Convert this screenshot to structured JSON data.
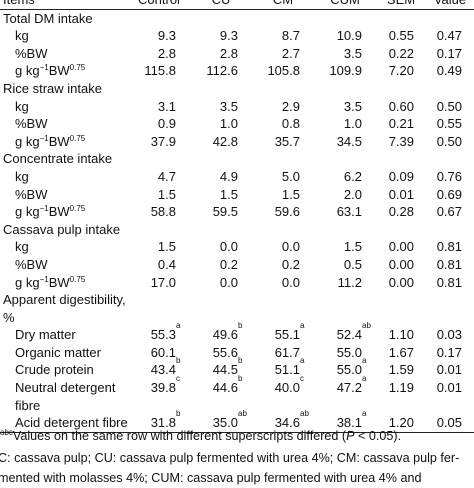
{
  "header": {
    "columns": [
      "Items",
      "Control",
      "CU",
      "CM",
      "CUM",
      "SEM",
      "Value"
    ]
  },
  "table": {
    "sections": [
      {
        "title": [
          "Total DM intake"
        ],
        "rows": [
          {
            "label": [
              "kg"
            ],
            "cells": [
              {
                "value": "9.3"
              },
              {
                "value": "9.3"
              },
              {
                "value": "8.7"
              },
              {
                "value": "10.9"
              },
              {
                "value": "0.55"
              },
              {
                "value": "0.47"
              }
            ]
          },
          {
            "label": [
              "%BW"
            ],
            "cells": [
              {
                "value": "2.8"
              },
              {
                "value": "2.8"
              },
              {
                "value": "2.7"
              },
              {
                "value": "3.5"
              },
              {
                "value": "0.22"
              },
              {
                "value": "0.17"
              }
            ]
          },
          {
            "label": [
              "g kg",
              "−1",
              "BW",
              "0.75"
            ],
            "cells": [
              {
                "value": "115.8"
              },
              {
                "value": "112.6"
              },
              {
                "value": "105.8"
              },
              {
                "value": "109.9"
              },
              {
                "value": "7.20"
              },
              {
                "value": "0.49"
              }
            ]
          }
        ]
      },
      {
        "title": [
          "Rice straw intake"
        ],
        "rows": [
          {
            "label": [
              "kg"
            ],
            "cells": [
              {
                "value": "3.1"
              },
              {
                "value": "3.5"
              },
              {
                "value": "2.9"
              },
              {
                "value": "3.5"
              },
              {
                "value": "0.60"
              },
              {
                "value": "0.50"
              }
            ]
          },
          {
            "label": [
              "%BW"
            ],
            "cells": [
              {
                "value": "0.9"
              },
              {
                "value": "1.0"
              },
              {
                "value": "0.8"
              },
              {
                "value": "1.0"
              },
              {
                "value": "0.21"
              },
              {
                "value": "0.55"
              }
            ]
          },
          {
            "label": [
              "g kg",
              "−1",
              "BW",
              "0.75"
            ],
            "cells": [
              {
                "value": "37.9"
              },
              {
                "value": "42.8"
              },
              {
                "value": "35.7"
              },
              {
                "value": "34.5"
              },
              {
                "value": "7.39"
              },
              {
                "value": "0.50"
              }
            ]
          }
        ]
      },
      {
        "title": [
          "Concentrate intake"
        ],
        "rows": [
          {
            "label": [
              "kg"
            ],
            "cells": [
              {
                "value": "4.7"
              },
              {
                "value": "4.9"
              },
              {
                "value": "5.0"
              },
              {
                "value": "6.2"
              },
              {
                "value": "0.09"
              },
              {
                "value": "0.76"
              }
            ]
          },
          {
            "label": [
              "%BW"
            ],
            "cells": [
              {
                "value": "1.5"
              },
              {
                "value": "1.5"
              },
              {
                "value": "1.5"
              },
              {
                "value": "2.0"
              },
              {
                "value": "0.01"
              },
              {
                "value": "0.69"
              }
            ]
          },
          {
            "label": [
              "g kg",
              "−1",
              "BW",
              "0.75"
            ],
            "cells": [
              {
                "value": "58.8"
              },
              {
                "value": "59.5"
              },
              {
                "value": "59.6"
              },
              {
                "value": "63.1"
              },
              {
                "value": "0.28"
              },
              {
                "value": "0.67"
              }
            ]
          }
        ]
      },
      {
        "title": [
          "Cassava pulp intake"
        ],
        "rows": [
          {
            "label": [
              "kg"
            ],
            "cells": [
              {
                "value": "1.5"
              },
              {
                "value": "0.0"
              },
              {
                "value": "0.0"
              },
              {
                "value": "1.5"
              },
              {
                "value": "0.00"
              },
              {
                "value": "0.81"
              }
            ]
          },
          {
            "label": [
              "%BW"
            ],
            "cells": [
              {
                "value": "0.4"
              },
              {
                "value": "0.2"
              },
              {
                "value": "0.2"
              },
              {
                "value": "0.5"
              },
              {
                "value": "0.00"
              },
              {
                "value": "0.81"
              }
            ]
          },
          {
            "label": [
              "g kg",
              "−1",
              "BW",
              "0.75"
            ],
            "cells": [
              {
                "value": "17.0"
              },
              {
                "value": "0.0"
              },
              {
                "value": "0.0"
              },
              {
                "value": "11.2"
              },
              {
                "value": "0.00"
              },
              {
                "value": "0.81"
              }
            ]
          }
        ]
      },
      {
        "title": [
          "Apparent digestibility, %"
        ],
        "rows": [
          {
            "label": [
              "Dry matter"
            ],
            "cells": [
              {
                "value": "55.3",
                "sup": "a"
              },
              {
                "value": "49.6",
                "sup": "b"
              },
              {
                "value": "55.1",
                "sup": "a"
              },
              {
                "value": "52.4",
                "sup": "ab"
              },
              {
                "value": "1.10"
              },
              {
                "value": "0.03"
              }
            ]
          },
          {
            "label": [
              "Organic matter"
            ],
            "cells": [
              {
                "value": "60.1"
              },
              {
                "value": "55.6"
              },
              {
                "value": "61.7"
              },
              {
                "value": "55.0"
              },
              {
                "value": "1.67"
              },
              {
                "value": "0.17"
              }
            ]
          },
          {
            "label": [
              "Crude protein"
            ],
            "cells": [
              {
                "value": "43.4",
                "sup": "b"
              },
              {
                "value": "44.5",
                "sup": "b"
              },
              {
                "value": "51.1",
                "sup": "a"
              },
              {
                "value": "55.0",
                "sup": "a"
              },
              {
                "value": "1.59"
              },
              {
                "value": "0.01"
              }
            ]
          },
          {
            "label": [
              "Neutral detergent fibre"
            ],
            "cells": [
              {
                "value": "39.8",
                "sup": "c"
              },
              {
                "value": "44.6",
                "sup": "b"
              },
              {
                "value": "40.0",
                "sup": "c"
              },
              {
                "value": "47.2",
                "sup": "a"
              },
              {
                "value": "1.19"
              },
              {
                "value": "0.01"
              }
            ]
          },
          {
            "label": [
              "Acid detergent fibre"
            ],
            "cells": [
              {
                "value": "31.8",
                "sup": "b"
              },
              {
                "value": "35.0",
                "sup": "ab"
              },
              {
                "value": "34.6",
                "sup": "ab"
              },
              {
                "value": "38.1",
                "sup": "a"
              },
              {
                "value": "1.20"
              },
              {
                "value": "0.05"
              }
            ]
          }
        ]
      }
    ]
  },
  "footnotes": {
    "significance": {
      "sup": "abc",
      "before": "Values on the same row with different superscripts differed (",
      "italic": "P",
      "after": " < 0.05)."
    },
    "abbreviations": [
      "C: cassava pulp; CU: cassava pulp fermented with urea 4%; CM: cassava pulp fer-",
      "mented with molasses 4%; CUM: cassava pulp fermented with urea 4% and"
    ]
  }
}
